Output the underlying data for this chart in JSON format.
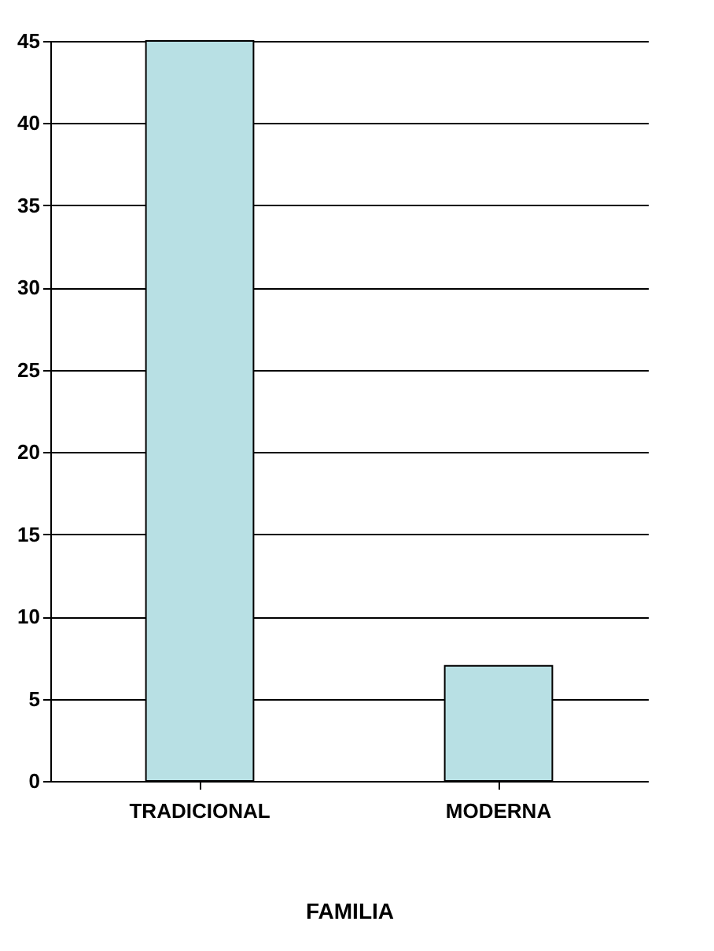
{
  "chart_data": {
    "type": "bar",
    "xlabel": "FAMILIA",
    "categories": [
      "TRADICIONAL",
      "MODERNA"
    ],
    "values": [
      45,
      7
    ],
    "color": "#b8e0e4",
    "ylim": [
      0,
      45
    ],
    "yticks": [
      0,
      5,
      10,
      15,
      20,
      25,
      30,
      35,
      40,
      45
    ],
    "grid": "y"
  }
}
